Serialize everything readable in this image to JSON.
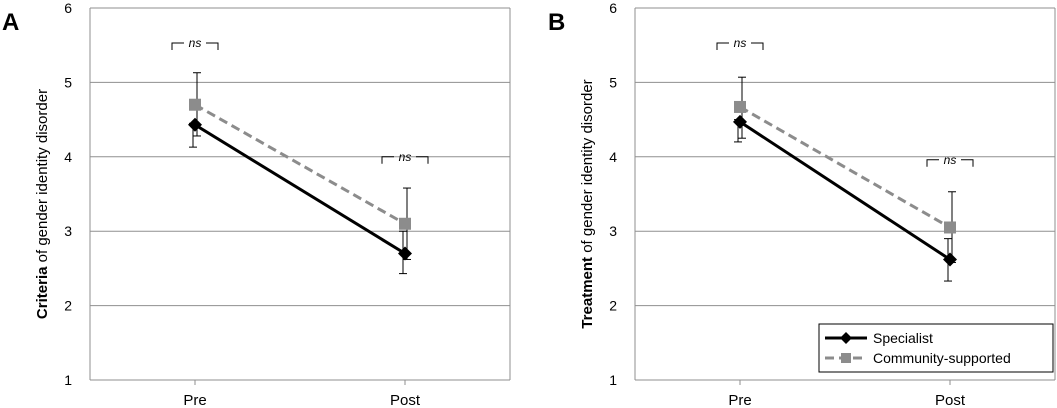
{
  "chart_data": [
    {
      "type": "line",
      "panel_letter": "A",
      "ylabel_bold": "Criteria",
      "ylabel_rest": " of gender identity disorder",
      "ylim": [
        1,
        6
      ],
      "yticks": [
        "1",
        "2",
        "3",
        "4",
        "5",
        "6"
      ],
      "categories": [
        "Pre",
        "Post"
      ],
      "grid": true,
      "series": [
        {
          "name": "Specialist",
          "values": [
            4.43,
            2.7
          ],
          "err_lo": [
            4.13,
            2.43
          ],
          "err_hi": [
            4.45,
            3.0
          ],
          "color": "#000000",
          "dashed": false,
          "marker": "diamond"
        },
        {
          "name": "Community-supported",
          "values": [
            4.7,
            3.1
          ],
          "err_lo": [
            4.28,
            2.62
          ],
          "err_hi": [
            5.13,
            3.58
          ],
          "color": "#8c8c8c",
          "dashed": true,
          "marker": "square"
        }
      ],
      "annotations": [
        {
          "category": "Pre",
          "text": "ns",
          "level": 5.53
        },
        {
          "category": "Post",
          "text": "ns",
          "level": 4.0
        }
      ],
      "legend": null
    },
    {
      "type": "line",
      "panel_letter": "B",
      "ylabel_bold": "Treatment",
      "ylabel_rest": " of gender identity disorder",
      "ylim": [
        1,
        6
      ],
      "yticks": [
        "1",
        "2",
        "3",
        "4",
        "5",
        "6"
      ],
      "categories": [
        "Pre",
        "Post"
      ],
      "grid": true,
      "series": [
        {
          "name": "Specialist",
          "values": [
            4.47,
            2.62
          ],
          "err_lo": [
            4.2,
            2.33
          ],
          "err_hi": [
            4.5,
            2.9
          ],
          "color": "#000000",
          "dashed": false,
          "marker": "diamond"
        },
        {
          "name": "Community-supported",
          "values": [
            4.67,
            3.05
          ],
          "err_lo": [
            4.25,
            2.58
          ],
          "err_hi": [
            5.07,
            3.53
          ],
          "color": "#8c8c8c",
          "dashed": true,
          "marker": "square"
        }
      ],
      "annotations": [
        {
          "category": "Pre",
          "text": "ns",
          "level": 5.53
        },
        {
          "category": "Post",
          "text": "ns",
          "level": 3.96
        }
      ],
      "legend": "bottom-right"
    }
  ]
}
